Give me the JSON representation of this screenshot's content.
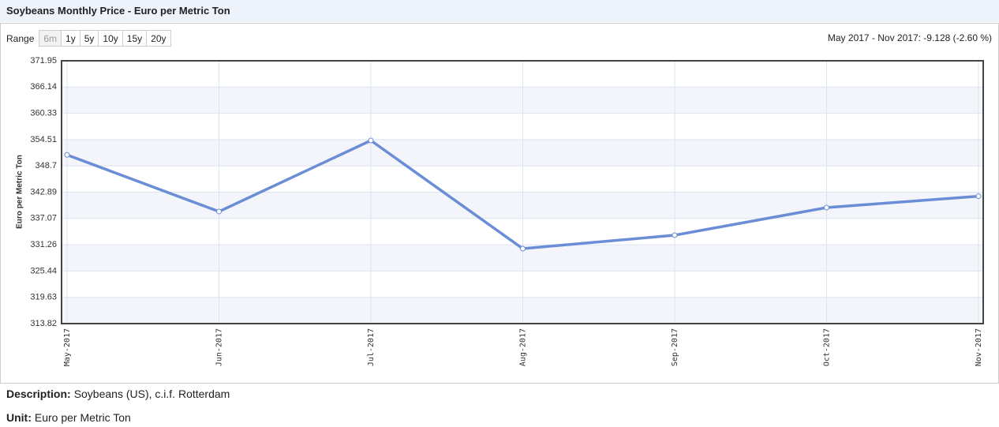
{
  "header": {
    "title": "Soybeans Monthly Price - Euro per Metric Ton"
  },
  "controls": {
    "range_label": "Range",
    "buttons": [
      "6m",
      "1y",
      "5y",
      "10y",
      "15y",
      "20y"
    ],
    "change_summary": "May 2017 - Nov 2017: -9.128 (-2.60 %)"
  },
  "chart_data": {
    "type": "line",
    "y_label": "Euro per Metric Ton",
    "categories": [
      "May-2017",
      "Jun-2017",
      "Jul-2017",
      "Aug-2017",
      "Sep-2017",
      "Oct-2017",
      "Nov-2017"
    ],
    "series": [
      {
        "name": "Soybeans",
        "color": "#6b8dd6",
        "values": [
          351.13,
          338.6,
          354.32,
          330.4,
          333.37,
          339.48,
          342.0
        ]
      }
    ],
    "ylim": [
      313.82,
      371.95
    ],
    "yticks": [
      313.82,
      319.63,
      325.44,
      331.26,
      337.07,
      342.89,
      348.7,
      354.51,
      360.33,
      366.14,
      371.95
    ],
    "grid": true
  },
  "description": {
    "label": "Description:",
    "text": "Soybeans (US), c.i.f. Rotterdam"
  },
  "unit": {
    "label": "Unit:",
    "text": "Euro per Metric Ton"
  }
}
